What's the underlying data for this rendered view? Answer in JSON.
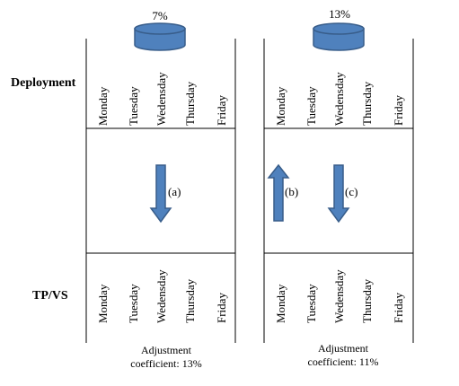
{
  "row_labels": {
    "top": "Deployment",
    "bottom": "TP/VS"
  },
  "days": [
    "Monday",
    "Tuesday",
    "Wedensday",
    "Thursday",
    "Friday"
  ],
  "left_panel": {
    "percentage": "7%",
    "arrows": [
      {
        "direction": "down",
        "label": "(a)"
      }
    ],
    "coefficient_line1": "Adjustment",
    "coefficient_line2": "coefficient: 13%"
  },
  "right_panel": {
    "percentage": "13%",
    "arrows": [
      {
        "direction": "up",
        "label": "(b)"
      },
      {
        "direction": "down",
        "label": "(c)"
      }
    ],
    "coefficient_line1": "Adjustment",
    "coefficient_line2": "coefficient: 11%"
  },
  "colors": {
    "shape_fill": "#4f81bd",
    "shape_stroke": "#385d8a"
  }
}
